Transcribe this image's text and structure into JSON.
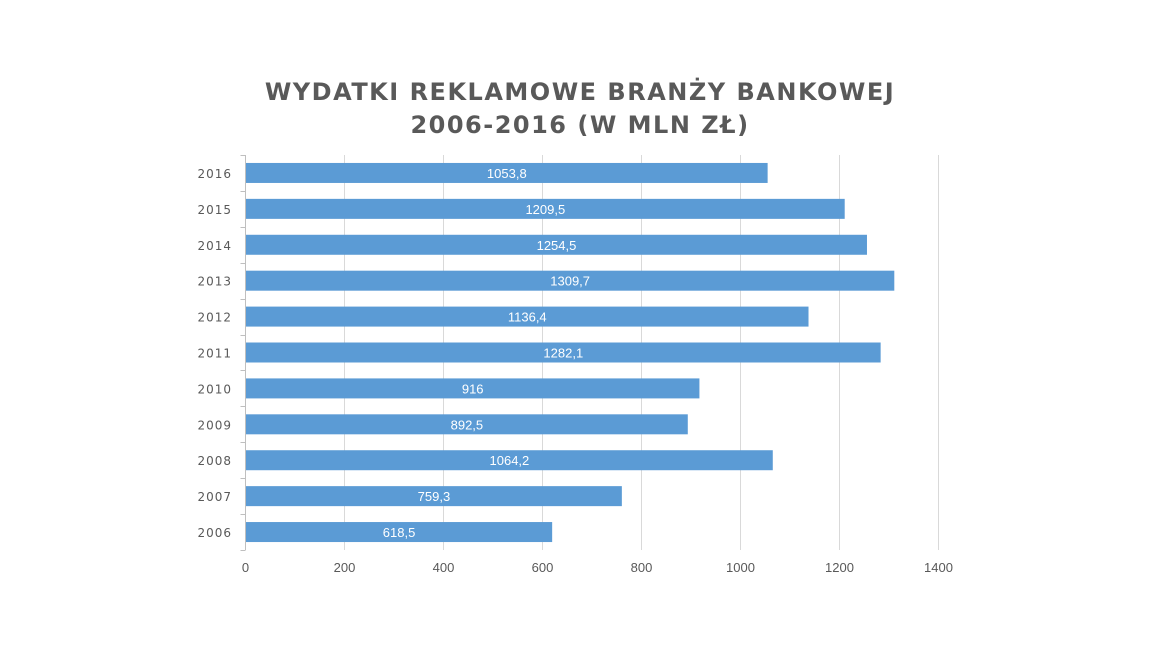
{
  "chart_data": {
    "type": "bar",
    "orientation": "horizontal",
    "title_lines": [
      "WYDATKI REKLAMOWE BRANŻY BANKOWEJ",
      "2006-2016 (W MLN ZŁ)"
    ],
    "categories": [
      "2016",
      "2015",
      "2014",
      "2013",
      "2012",
      "2011",
      "2010",
      "2009",
      "2008",
      "2007",
      "2006"
    ],
    "values": [
      1053.8,
      1209.5,
      1254.5,
      1309.7,
      1136.4,
      1282.1,
      916,
      892.5,
      1064.2,
      759.3,
      618.5
    ],
    "data_labels": [
      "1053,8",
      "1209,5",
      "1254,5",
      "1309,7",
      "1136,4",
      "1282,1",
      "916",
      "892,5",
      "1064,2",
      "759,3",
      "618,5"
    ],
    "x_ticks": [
      "0",
      "200",
      "400",
      "600",
      "800",
      "1000",
      "1200",
      "1400"
    ],
    "xlim": [
      0,
      1400
    ],
    "grid": true,
    "legend": "none",
    "colors": {
      "bar": "#5b9bd5",
      "label": "#ffffff",
      "text": "#595959",
      "grid": "#d9d9d9"
    }
  }
}
